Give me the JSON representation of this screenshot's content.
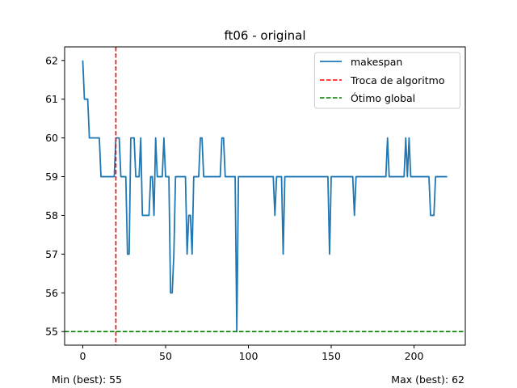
{
  "chart_data": {
    "type": "line",
    "title": "ft06 - original",
    "xlabel": "",
    "ylabel": "",
    "xlim": [
      -10.95,
      230.95
    ],
    "ylim": [
      54.65,
      62.35
    ],
    "xticks": [
      0,
      50,
      100,
      150,
      200
    ],
    "yticks": [
      55,
      56,
      57,
      58,
      59,
      60,
      61,
      62
    ],
    "grid": false,
    "legend_position": "top-right",
    "series": [
      {
        "name": "makespan",
        "color": "#1f77b4",
        "points": [
          [
            0,
            62
          ],
          [
            1,
            61
          ],
          [
            3,
            61
          ],
          [
            4,
            60
          ],
          [
            10,
            60
          ],
          [
            11,
            59
          ],
          [
            19,
            59
          ],
          [
            20,
            60
          ],
          [
            22,
            60
          ],
          [
            23,
            59
          ],
          [
            26,
            59
          ],
          [
            27,
            57
          ],
          [
            28,
            57
          ],
          [
            29,
            60
          ],
          [
            31,
            60
          ],
          [
            32,
            59
          ],
          [
            34,
            59
          ],
          [
            35,
            60
          ],
          [
            36,
            58
          ],
          [
            40,
            58
          ],
          [
            41,
            59
          ],
          [
            42,
            59
          ],
          [
            43,
            58
          ],
          [
            44,
            60
          ],
          [
            45,
            59
          ],
          [
            48,
            59
          ],
          [
            49,
            60
          ],
          [
            50,
            59
          ],
          [
            52,
            59
          ],
          [
            53,
            56
          ],
          [
            54,
            56
          ],
          [
            55,
            57
          ],
          [
            56,
            59
          ],
          [
            62,
            59
          ],
          [
            63,
            57
          ],
          [
            64,
            58
          ],
          [
            65,
            58
          ],
          [
            66,
            57
          ],
          [
            67,
            59
          ],
          [
            70,
            59
          ],
          [
            71,
            60
          ],
          [
            72,
            60
          ],
          [
            73,
            59
          ],
          [
            83,
            59
          ],
          [
            84,
            60
          ],
          [
            85,
            60
          ],
          [
            86,
            59
          ],
          [
            92,
            59
          ],
          [
            93,
            55
          ],
          [
            94,
            59
          ],
          [
            115,
            59
          ],
          [
            116,
            58
          ],
          [
            117,
            59
          ],
          [
            120,
            59
          ],
          [
            121,
            57
          ],
          [
            122,
            59
          ],
          [
            148,
            59
          ],
          [
            149,
            57
          ],
          [
            150,
            59
          ],
          [
            163,
            59
          ],
          [
            164,
            58
          ],
          [
            165,
            59
          ],
          [
            183,
            59
          ],
          [
            184,
            60
          ],
          [
            185,
            59
          ],
          [
            194,
            59
          ],
          [
            195,
            60
          ],
          [
            196,
            59
          ],
          [
            197,
            60
          ],
          [
            198,
            59
          ],
          [
            209,
            59
          ],
          [
            210,
            58
          ],
          [
            212,
            58
          ],
          [
            213,
            59
          ],
          [
            220,
            59
          ]
        ]
      }
    ],
    "vlines": [
      {
        "name": "Troca de algoritmo",
        "x": 20,
        "color": "#ff0000",
        "style": "dashed"
      }
    ],
    "hlines": [
      {
        "name": "Ótimo global",
        "y": 55,
        "color": "#008000",
        "style": "dashed"
      }
    ]
  },
  "notes": {
    "min": "Min (best): 55",
    "max": "Max (best): 62"
  }
}
